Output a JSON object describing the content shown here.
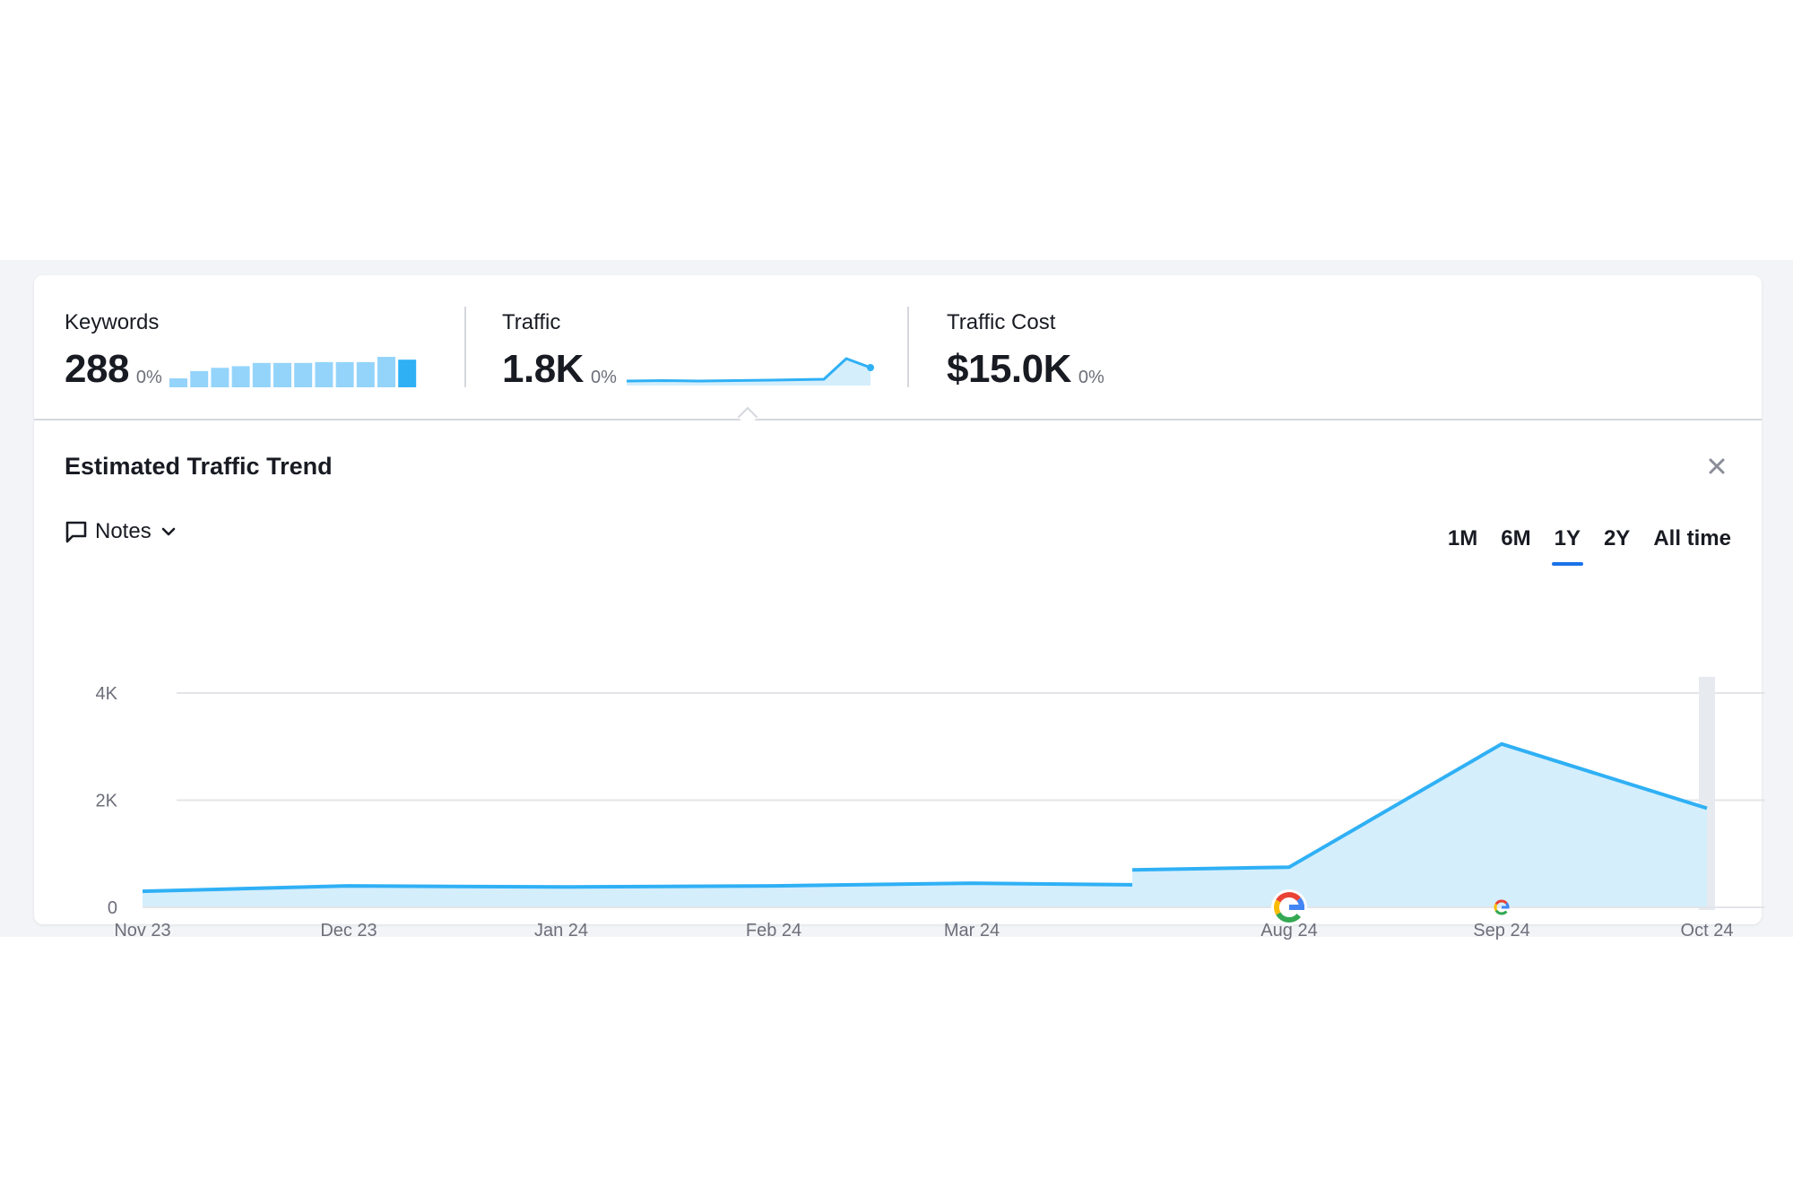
{
  "summary": {
    "keywords": {
      "label": "Keywords",
      "value": "288",
      "delta": "0%"
    },
    "traffic": {
      "label": "Traffic",
      "value": "1.8K",
      "delta": "0%"
    },
    "traffic_cost": {
      "label": "Traffic Cost",
      "value": "$15.0K",
      "delta": "0%"
    }
  },
  "sparklines": {
    "keywords_bars": [
      22,
      40,
      48,
      52,
      60,
      60,
      60,
      62,
      62,
      62,
      75,
      68
    ],
    "traffic_line": [
      10,
      11,
      10,
      11,
      12,
      14,
      60,
      40
    ]
  },
  "panel": {
    "title": "Estimated Traffic Trend",
    "notes_label": "Notes",
    "ranges": [
      "1M",
      "6M",
      "1Y",
      "2Y",
      "All time"
    ],
    "active_range": "1Y"
  },
  "chart_data": {
    "type": "area",
    "categories": [
      "Nov 23",
      "Dec 23",
      "Jan 24",
      "Feb 24",
      "Mar 24",
      "Aug 24",
      "Sep 24",
      "Oct 24"
    ],
    "y_ticks": [
      "0",
      "2K",
      "4K"
    ],
    "ylim": [
      0,
      4000
    ],
    "series": [
      {
        "points": [
          {
            "x": "Nov 23",
            "y": 300
          },
          {
            "x": "Dec 23",
            "y": 400
          },
          {
            "x": "Jan 24",
            "y": 380
          },
          {
            "x": "Feb 24",
            "y": 400
          },
          {
            "x": "Mar 24",
            "y": 450
          },
          {
            "x": "Jul 24",
            "y": 420,
            "break": true
          },
          {
            "x": "Jul 24",
            "y": 700
          },
          {
            "x": "Aug 24",
            "y": 750
          },
          {
            "x": "Sep 24",
            "y": 3050
          },
          {
            "x": "Oct 24",
            "y": 1850
          }
        ]
      }
    ],
    "annotations": [
      {
        "x": "Aug 24",
        "icon": "google-update-icon"
      },
      {
        "x": "Sep 24",
        "icon": "google-update-icon"
      }
    ],
    "colors": {
      "line": "#2fb0f5",
      "fill": "#d4eefc",
      "grid": "#e3e5ea",
      "highlight": "#e7eaee"
    },
    "grid": true
  }
}
